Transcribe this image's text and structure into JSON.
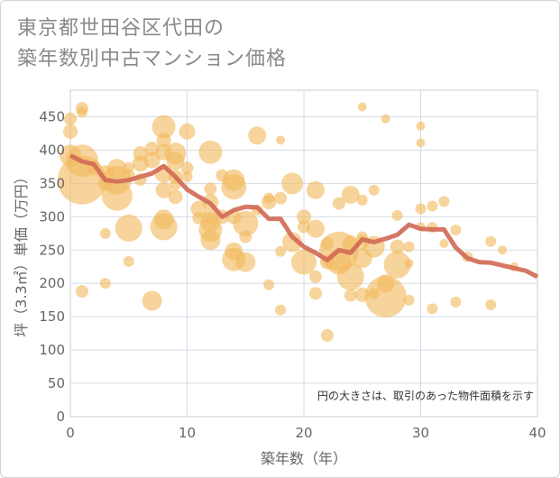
{
  "title_line1": "東京都世田谷区代田の",
  "title_line2": "築年数別中古マンション価格",
  "chart_data": {
    "type": "scatter",
    "title": "東京都世田谷区代田の築年数別中古マンション価格",
    "xlabel": "築年数（年）",
    "ylabel": "坪（3.3㎡）単価（万円）",
    "xlim": [
      0,
      40
    ],
    "ylim": [
      0,
      490
    ],
    "xticks": [
      "0",
      "10",
      "20",
      "30",
      "40"
    ],
    "yticks": [
      "0",
      "50",
      "100",
      "150",
      "200",
      "250",
      "300",
      "350",
      "400",
      "450"
    ],
    "grid": true,
    "note": "円の大きさは、取引のあった物件面積を示す",
    "colors": {
      "bubble": "#f2b95e",
      "line": "#d16b57",
      "grid": "#d3dde6",
      "frame": "#cfcfcf"
    },
    "points": [
      {
        "x": 0,
        "y": 447,
        "s": 7
      },
      {
        "x": 0,
        "y": 428,
        "s": 8
      },
      {
        "x": 1,
        "y": 463,
        "s": 7
      },
      {
        "x": 1,
        "y": 457,
        "s": 6
      },
      {
        "x": 0,
        "y": 392,
        "s": 12
      },
      {
        "x": 1,
        "y": 384,
        "s": 18
      },
      {
        "x": 1,
        "y": 355,
        "s": 27
      },
      {
        "x": 1,
        "y": 188,
        "s": 7
      },
      {
        "x": 2,
        "y": 373,
        "s": 8
      },
      {
        "x": 3,
        "y": 365,
        "s": 9
      },
      {
        "x": 3,
        "y": 350,
        "s": 8
      },
      {
        "x": 3,
        "y": 275,
        "s": 6
      },
      {
        "x": 3,
        "y": 200,
        "s": 6
      },
      {
        "x": 4,
        "y": 372,
        "s": 11
      },
      {
        "x": 4,
        "y": 355,
        "s": 16
      },
      {
        "x": 4,
        "y": 332,
        "s": 17
      },
      {
        "x": 5,
        "y": 374,
        "s": 6
      },
      {
        "x": 5,
        "y": 362,
        "s": 7
      },
      {
        "x": 5,
        "y": 283,
        "s": 15
      },
      {
        "x": 5,
        "y": 233,
        "s": 6
      },
      {
        "x": 6,
        "y": 395,
        "s": 8
      },
      {
        "x": 6,
        "y": 380,
        "s": 9
      },
      {
        "x": 6,
        "y": 356,
        "s": 7
      },
      {
        "x": 7,
        "y": 402,
        "s": 8
      },
      {
        "x": 7,
        "y": 385,
        "s": 9
      },
      {
        "x": 7,
        "y": 174,
        "s": 11
      },
      {
        "x": 8,
        "y": 435,
        "s": 13
      },
      {
        "x": 8,
        "y": 415,
        "s": 8
      },
      {
        "x": 8,
        "y": 397,
        "s": 9
      },
      {
        "x": 8,
        "y": 365,
        "s": 10
      },
      {
        "x": 8,
        "y": 340,
        "s": 9
      },
      {
        "x": 8,
        "y": 296,
        "s": 11
      },
      {
        "x": 8,
        "y": 285,
        "s": 15
      },
      {
        "x": 9,
        "y": 395,
        "s": 12
      },
      {
        "x": 9,
        "y": 384,
        "s": 10
      },
      {
        "x": 9,
        "y": 360,
        "s": 8
      },
      {
        "x": 9,
        "y": 348,
        "s": 6
      },
      {
        "x": 9,
        "y": 330,
        "s": 8
      },
      {
        "x": 10,
        "y": 428,
        "s": 9
      },
      {
        "x": 10,
        "y": 373,
        "s": 7
      },
      {
        "x": 10,
        "y": 360,
        "s": 6
      },
      {
        "x": 11,
        "y": 312,
        "s": 9
      },
      {
        "x": 11,
        "y": 298,
        "s": 7
      },
      {
        "x": 12,
        "y": 397,
        "s": 13
      },
      {
        "x": 12,
        "y": 342,
        "s": 7
      },
      {
        "x": 12,
        "y": 322,
        "s": 9
      },
      {
        "x": 12,
        "y": 300,
        "s": 8
      },
      {
        "x": 12,
        "y": 292,
        "s": 11
      },
      {
        "x": 12,
        "y": 280,
        "s": 13
      },
      {
        "x": 12,
        "y": 265,
        "s": 11
      },
      {
        "x": 13,
        "y": 362,
        "s": 7
      },
      {
        "x": 13,
        "y": 300,
        "s": 8
      },
      {
        "x": 14,
        "y": 355,
        "s": 12
      },
      {
        "x": 14,
        "y": 345,
        "s": 14
      },
      {
        "x": 14,
        "y": 300,
        "s": 8
      },
      {
        "x": 14,
        "y": 248,
        "s": 10
      },
      {
        "x": 14,
        "y": 236,
        "s": 13
      },
      {
        "x": 15,
        "y": 290,
        "s": 14
      },
      {
        "x": 15,
        "y": 270,
        "s": 7
      },
      {
        "x": 15,
        "y": 232,
        "s": 11
      },
      {
        "x": 16,
        "y": 422,
        "s": 10
      },
      {
        "x": 16,
        "y": 310,
        "s": 6
      },
      {
        "x": 17,
        "y": 328,
        "s": 6
      },
      {
        "x": 17,
        "y": 322,
        "s": 8
      },
      {
        "x": 17,
        "y": 198,
        "s": 6
      },
      {
        "x": 18,
        "y": 415,
        "s": 5
      },
      {
        "x": 18,
        "y": 328,
        "s": 7
      },
      {
        "x": 18,
        "y": 248,
        "s": 6
      },
      {
        "x": 18,
        "y": 160,
        "s": 6
      },
      {
        "x": 19,
        "y": 350,
        "s": 12
      },
      {
        "x": 19,
        "y": 262,
        "s": 11
      },
      {
        "x": 20,
        "y": 300,
        "s": 8
      },
      {
        "x": 20,
        "y": 285,
        "s": 7
      },
      {
        "x": 20,
        "y": 232,
        "s": 14
      },
      {
        "x": 21,
        "y": 340,
        "s": 10
      },
      {
        "x": 21,
        "y": 282,
        "s": 10
      },
      {
        "x": 21,
        "y": 210,
        "s": 7
      },
      {
        "x": 21,
        "y": 185,
        "s": 7
      },
      {
        "x": 22,
        "y": 260,
        "s": 7
      },
      {
        "x": 22,
        "y": 232,
        "s": 8
      },
      {
        "x": 22,
        "y": 122,
        "s": 7
      },
      {
        "x": 23,
        "y": 320,
        "s": 7
      },
      {
        "x": 23,
        "y": 248,
        "s": 22
      },
      {
        "x": 23,
        "y": 232,
        "s": 14
      },
      {
        "x": 24,
        "y": 333,
        "s": 10
      },
      {
        "x": 24,
        "y": 260,
        "s": 9
      },
      {
        "x": 24,
        "y": 210,
        "s": 15
      },
      {
        "x": 24,
        "y": 182,
        "s": 7
      },
      {
        "x": 25,
        "y": 465,
        "s": 5
      },
      {
        "x": 25,
        "y": 325,
        "s": 6
      },
      {
        "x": 25,
        "y": 270,
        "s": 6
      },
      {
        "x": 25,
        "y": 262,
        "s": 8
      },
      {
        "x": 25,
        "y": 238,
        "s": 11
      },
      {
        "x": 25,
        "y": 183,
        "s": 8
      },
      {
        "x": 26,
        "y": 340,
        "s": 6
      },
      {
        "x": 26,
        "y": 255,
        "s": 12
      },
      {
        "x": 26,
        "y": 185,
        "s": 6
      },
      {
        "x": 27,
        "y": 447,
        "s": 5
      },
      {
        "x": 27,
        "y": 180,
        "s": 23
      },
      {
        "x": 27,
        "y": 200,
        "s": 10
      },
      {
        "x": 28,
        "y": 302,
        "s": 6
      },
      {
        "x": 28,
        "y": 255,
        "s": 8
      },
      {
        "x": 28,
        "y": 228,
        "s": 15
      },
      {
        "x": 29,
        "y": 255,
        "s": 6
      },
      {
        "x": 29,
        "y": 230,
        "s": 5
      },
      {
        "x": 29,
        "y": 175,
        "s": 6
      },
      {
        "x": 30,
        "y": 436,
        "s": 5
      },
      {
        "x": 30,
        "y": 411,
        "s": 5
      },
      {
        "x": 30,
        "y": 312,
        "s": 6
      },
      {
        "x": 30,
        "y": 285,
        "s": 5
      },
      {
        "x": 31,
        "y": 316,
        "s": 6
      },
      {
        "x": 31,
        "y": 284,
        "s": 6
      },
      {
        "x": 31,
        "y": 162,
        "s": 6
      },
      {
        "x": 32,
        "y": 323,
        "s": 6
      },
      {
        "x": 32,
        "y": 260,
        "s": 5
      },
      {
        "x": 33,
        "y": 280,
        "s": 6
      },
      {
        "x": 33,
        "y": 172,
        "s": 6
      },
      {
        "x": 34,
        "y": 240,
        "s": 6
      },
      {
        "x": 36,
        "y": 263,
        "s": 6
      },
      {
        "x": 36,
        "y": 168,
        "s": 6
      },
      {
        "x": 37,
        "y": 250,
        "s": 5
      },
      {
        "x": 38,
        "y": 225,
        "s": 5
      }
    ],
    "trend": [
      {
        "x": 0,
        "y": 392
      },
      {
        "x": 1,
        "y": 383
      },
      {
        "x": 2,
        "y": 379
      },
      {
        "x": 3,
        "y": 355
      },
      {
        "x": 4,
        "y": 353
      },
      {
        "x": 5,
        "y": 355
      },
      {
        "x": 6,
        "y": 360
      },
      {
        "x": 7,
        "y": 365
      },
      {
        "x": 8,
        "y": 376
      },
      {
        "x": 9,
        "y": 360
      },
      {
        "x": 10,
        "y": 341
      },
      {
        "x": 11,
        "y": 330
      },
      {
        "x": 12,
        "y": 320
      },
      {
        "x": 13,
        "y": 300
      },
      {
        "x": 14,
        "y": 310
      },
      {
        "x": 15,
        "y": 315
      },
      {
        "x": 16,
        "y": 314
      },
      {
        "x": 17,
        "y": 297
      },
      {
        "x": 18,
        "y": 297
      },
      {
        "x": 19,
        "y": 270
      },
      {
        "x": 20,
        "y": 255
      },
      {
        "x": 21,
        "y": 246
      },
      {
        "x": 22,
        "y": 235
      },
      {
        "x": 23,
        "y": 250
      },
      {
        "x": 24,
        "y": 246
      },
      {
        "x": 25,
        "y": 266
      },
      {
        "x": 26,
        "y": 262
      },
      {
        "x": 27,
        "y": 267
      },
      {
        "x": 28,
        "y": 273
      },
      {
        "x": 29,
        "y": 288
      },
      {
        "x": 30,
        "y": 282
      },
      {
        "x": 31,
        "y": 281
      },
      {
        "x": 32,
        "y": 281
      },
      {
        "x": 33,
        "y": 254
      },
      {
        "x": 34,
        "y": 238
      },
      {
        "x": 35,
        "y": 232
      },
      {
        "x": 36,
        "y": 231
      },
      {
        "x": 37,
        "y": 227
      },
      {
        "x": 38,
        "y": 223
      },
      {
        "x": 39,
        "y": 219
      },
      {
        "x": 40,
        "y": 210
      }
    ]
  }
}
